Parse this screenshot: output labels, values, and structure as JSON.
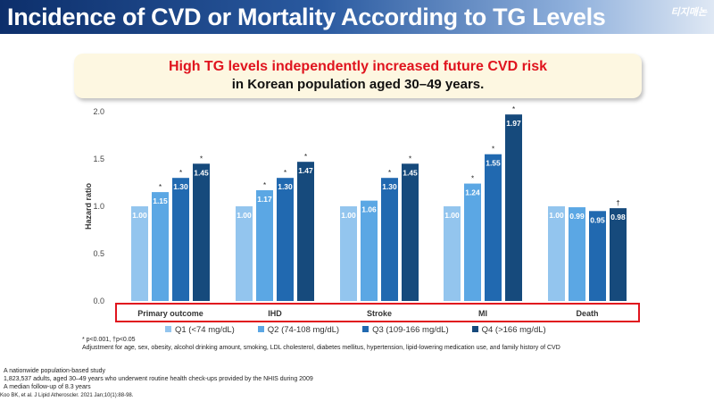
{
  "header": {
    "title": "Incidence of CVD or Mortality According to TG Levels",
    "logo": "티지매논"
  },
  "banner": {
    "line1": "High TG levels independently increased future CVD risk",
    "line2": "in Korean population aged 30–49 years."
  },
  "chart_data": {
    "type": "bar",
    "ylabel": "Hazard ratio",
    "ylim": [
      0,
      2.0
    ],
    "yticks": [
      "0.0",
      "0.5",
      "1.0",
      "1.5",
      "2.0"
    ],
    "categories": [
      "Primary outcome",
      "IHD",
      "Stroke",
      "MI",
      "Death"
    ],
    "series": [
      {
        "name": "Q1 (<74 mg/dL)",
        "color": "#93c5ee",
        "values": [
          1.0,
          1.0,
          1.0,
          1.0,
          1.0
        ],
        "marks": [
          "",
          "",
          "",
          "",
          ""
        ]
      },
      {
        "name": "Q2 (74-108 mg/dL)",
        "color": "#5ba7e4",
        "values": [
          1.15,
          1.17,
          1.06,
          1.24,
          0.99
        ],
        "marks": [
          "*",
          "*",
          "",
          "*",
          ""
        ]
      },
      {
        "name": "Q3 (109-166 mg/dL)",
        "color": "#2169b0",
        "values": [
          1.3,
          1.3,
          1.3,
          1.55,
          0.95
        ],
        "marks": [
          "*",
          "*",
          "*",
          "*",
          ""
        ]
      },
      {
        "name": "Q4 (>166 mg/dL)",
        "color": "#164a7c",
        "values": [
          1.45,
          1.47,
          1.45,
          1.97,
          0.98
        ],
        "marks": [
          "*",
          "*",
          "*",
          "*",
          "†"
        ]
      }
    ]
  },
  "notes": {
    "sig": "* p<0.001, †p<0.05",
    "adjust": "Adjustment for age, sex, obesity, alcohol drinking amount, smoking, LDL cholesterol, diabetes mellitus, hypertension, lipid-lowering medication use, and family history of CVD",
    "study1": "A nationwide population-based study",
    "study2": "1,823,537 adults, aged 30–49 years who underwent routine health check-ups provided by the NHIS during 2009",
    "study3": "A median follow-up of 8.3 years",
    "ref": "Koo BK, et al. J Lipid Atheroscler. 2021 Jan;10(1):88-98."
  }
}
